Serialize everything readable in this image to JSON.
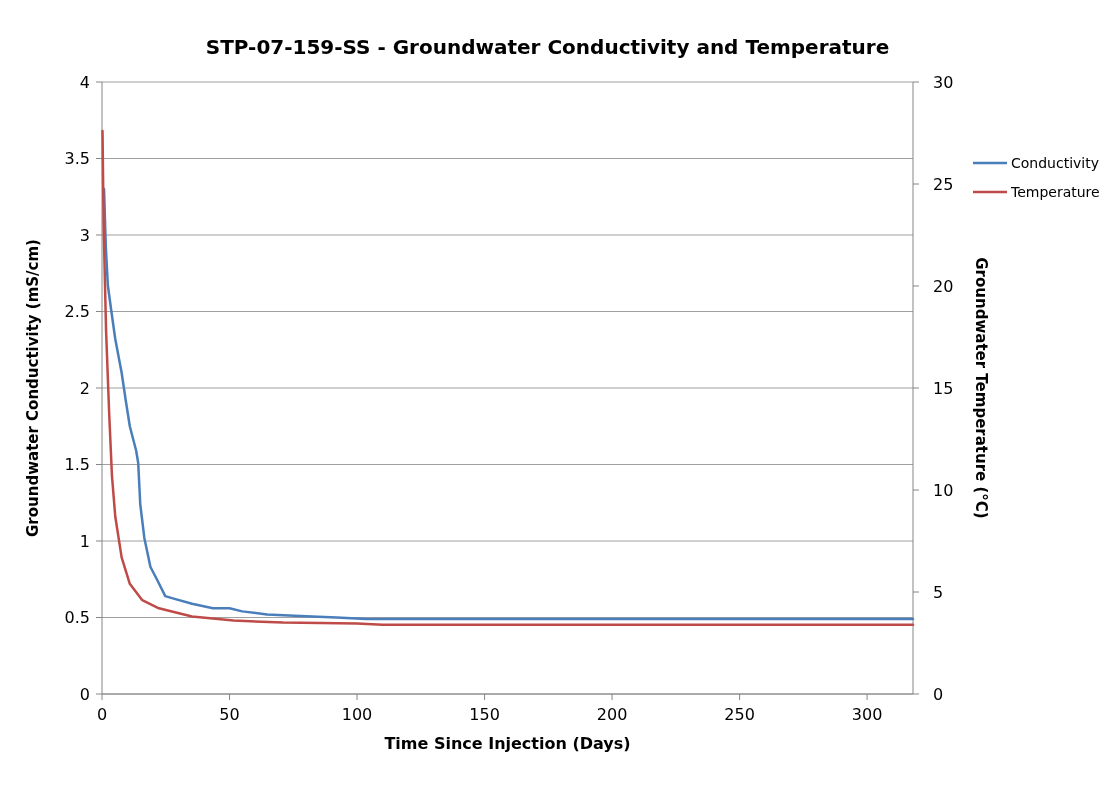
{
  "chart_data": {
    "type": "line",
    "title": "STP-07-159-SS - Groundwater Conductivity and Temperature",
    "xlabel": "Time Since Injection (Days)",
    "ylabel": "Groundwater Conductivity (mS/cm)",
    "y2label": "Groundwater Temperature (°C)",
    "xlim": [
      0,
      318
    ],
    "xticks": [
      0,
      50,
      100,
      150,
      200,
      250,
      300
    ],
    "ylim": [
      0,
      4
    ],
    "yticks": [
      0,
      0.5,
      1,
      1.5,
      2,
      2.5,
      3,
      3.5,
      4
    ],
    "y2lim": [
      0,
      30
    ],
    "y2ticks": [
      0,
      5,
      10,
      15,
      20,
      25,
      30
    ],
    "grid": "y",
    "legend": "right",
    "series": [
      {
        "name": "Conductivity",
        "color": "#4a7ebb",
        "x": [
          0.8,
          1.5,
          2.3,
          3.6,
          5.2,
          7.7,
          9.3,
          10.9,
          13.4,
          14.2,
          15,
          16.6,
          19,
          21.5,
          24.8,
          28.8,
          35.3,
          43.5,
          50,
          55,
          64.7,
          77.7,
          92,
          103.7,
          150,
          200,
          250,
          318
        ],
        "values": [
          3.3,
          2.92,
          2.67,
          2.51,
          2.32,
          2.1,
          1.92,
          1.75,
          1.59,
          1.51,
          1.24,
          1.02,
          0.83,
          0.75,
          0.64,
          0.62,
          0.59,
          0.56,
          0.56,
          0.54,
          0.52,
          0.51,
          0.5,
          0.49,
          0.49,
          0.49,
          0.49,
          0.49
        ]
      },
      {
        "name": "Temperature",
        "color": "#be4b48",
        "axis": "y2",
        "x": [
          0.2,
          0.65,
          1.6,
          2.8,
          3.9,
          5.2,
          7.7,
          10.9,
          15.8,
          22.3,
          35.3,
          51.6,
          71,
          100,
          110,
          150,
          200,
          250,
          318
        ],
        "values": [
          27.6,
          22.9,
          17.8,
          13.8,
          10.7,
          8.7,
          6.7,
          5.4,
          4.6,
          4.2,
          3.8,
          3.6,
          3.5,
          3.45,
          3.4,
          3.4,
          3.4,
          3.4,
          3.4
        ]
      }
    ]
  }
}
